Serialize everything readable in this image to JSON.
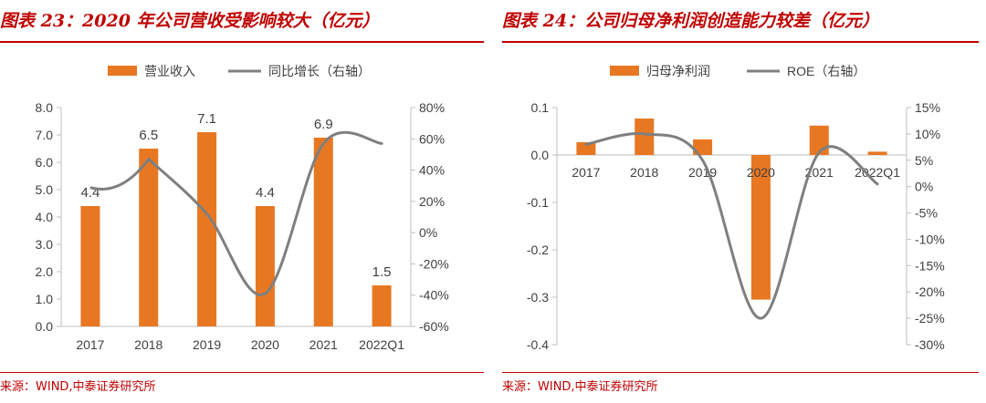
{
  "colors": {
    "bar": "#e87722",
    "line": "#7f7f7f",
    "accent": "#c00000",
    "axis": "#bfbfbf"
  },
  "panels": [
    {
      "title": "图表 23：2020 年公司营收受影响较大（亿元）",
      "source": "来源：WIND,中泰证券研究所"
    },
    {
      "title": "图表 24：公司归母净利润创造能力较差（亿元）",
      "source": "来源：WIND,中泰证券研究所"
    }
  ],
  "chart_data": [
    {
      "type": "bar",
      "categories": [
        "2017",
        "2018",
        "2019",
        "2020",
        "2021",
        "2022Q1"
      ],
      "series": [
        {
          "name": "营业收入",
          "type": "bar",
          "axis": "left",
          "values": [
            4.4,
            6.5,
            7.1,
            4.4,
            6.9,
            1.5
          ],
          "labels": [
            "4.4",
            "6.5",
            "7.1",
            "4.4",
            "6.9",
            "1.5"
          ]
        },
        {
          "name": "同比增长（右轴）",
          "type": "line",
          "axis": "right",
          "values": [
            null,
            47,
            12,
            -39,
            57,
            57
          ]
        }
      ],
      "ylim": [
        0,
        8
      ],
      "yticks": [
        "0.0",
        "1.0",
        "2.0",
        "3.0",
        "4.0",
        "5.0",
        "6.0",
        "7.0",
        "8.0"
      ],
      "y2lim": [
        -60,
        80
      ],
      "y2ticks": [
        "-60%",
        "-40%",
        "-20%",
        "0%",
        "20%",
        "40%",
        "60%",
        "80%"
      ],
      "legend": "top"
    },
    {
      "type": "bar",
      "categories": [
        "2017",
        "2018",
        "2019",
        "2020",
        "2021",
        "2022Q1"
      ],
      "series": [
        {
          "name": "归母净利润",
          "type": "bar",
          "axis": "left",
          "values": [
            0.027,
            0.077,
            0.033,
            -0.305,
            0.062,
            0.007
          ]
        },
        {
          "name": "ROE（右轴）",
          "type": "line",
          "axis": "right",
          "values": [
            8,
            10,
            5,
            -25,
            6.5,
            0.5
          ]
        }
      ],
      "ylim": [
        -0.4,
        0.1
      ],
      "yticks": [
        "-0.4",
        "-0.3",
        "-0.2",
        "-0.1",
        "0.0",
        "0.1"
      ],
      "y2lim": [
        -30,
        15
      ],
      "y2ticks": [
        "-30%",
        "-25%",
        "-20%",
        "-15%",
        "-10%",
        "-5%",
        "0%",
        "5%",
        "10%",
        "15%"
      ],
      "legend": "top"
    }
  ]
}
